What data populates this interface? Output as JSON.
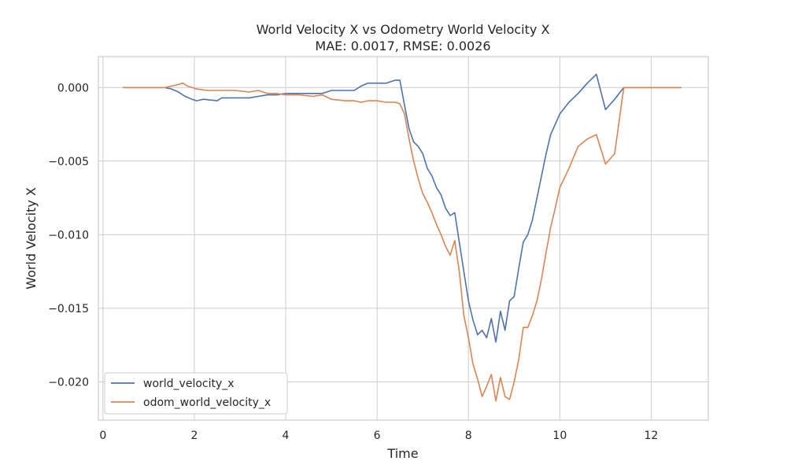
{
  "chart_data": {
    "type": "line",
    "title": "World Velocity X vs Odometry World Velocity X",
    "subtitle": "MAE: 0.0017, RMSE: 0.0026",
    "xlabel": "Time",
    "ylabel": "World Velocity X",
    "xlim": [
      -0.1,
      13.25
    ],
    "ylim": [
      -0.0226,
      0.0021
    ],
    "xticks": [
      0,
      2,
      4,
      6,
      8,
      10,
      12
    ],
    "xtick_labels": [
      "0",
      "2",
      "4",
      "6",
      "8",
      "10",
      "12"
    ],
    "yticks": [
      0.0,
      -0.005,
      -0.01,
      -0.015,
      -0.02
    ],
    "ytick_labels": [
      "0.000",
      "−0.005",
      "−0.010",
      "−0.015",
      "−0.020"
    ],
    "grid": true,
    "legend_position": "lower-left",
    "series": [
      {
        "name": "world_velocity_x",
        "color": "#4c72b0",
        "points": [
          [
            0.45,
            0.0
          ],
          [
            1.0,
            0.0
          ],
          [
            1.35,
            0.0
          ],
          [
            1.5,
            -0.0001
          ],
          [
            1.65,
            -0.0003
          ],
          [
            1.8,
            -0.0006
          ],
          [
            1.95,
            -0.0008
          ],
          [
            2.05,
            -0.0009
          ],
          [
            2.2,
            -0.0008
          ],
          [
            2.5,
            -0.0009
          ],
          [
            2.6,
            -0.0007
          ],
          [
            2.9,
            -0.0007
          ],
          [
            3.2,
            -0.0007
          ],
          [
            3.4,
            -0.0006
          ],
          [
            3.6,
            -0.0005
          ],
          [
            3.8,
            -0.0005
          ],
          [
            4.0,
            -0.0004
          ],
          [
            4.2,
            -0.0004
          ],
          [
            4.5,
            -0.0004
          ],
          [
            4.8,
            -0.0004
          ],
          [
            5.0,
            -0.0002
          ],
          [
            5.3,
            -0.0002
          ],
          [
            5.5,
            -0.0002
          ],
          [
            5.65,
            0.0001
          ],
          [
            5.8,
            0.0003
          ],
          [
            6.0,
            0.0003
          ],
          [
            6.2,
            0.0003
          ],
          [
            6.4,
            0.0005
          ],
          [
            6.5,
            0.0005
          ],
          [
            6.6,
            -0.0012
          ],
          [
            6.7,
            -0.0028
          ],
          [
            6.8,
            -0.0037
          ],
          [
            6.9,
            -0.004
          ],
          [
            7.0,
            -0.0045
          ],
          [
            7.1,
            -0.0055
          ],
          [
            7.2,
            -0.006
          ],
          [
            7.3,
            -0.0068
          ],
          [
            7.4,
            -0.0073
          ],
          [
            7.5,
            -0.0082
          ],
          [
            7.6,
            -0.0087
          ],
          [
            7.7,
            -0.0085
          ],
          [
            7.8,
            -0.0105
          ],
          [
            7.9,
            -0.0125
          ],
          [
            8.0,
            -0.0145
          ],
          [
            8.1,
            -0.0158
          ],
          [
            8.2,
            -0.0168
          ],
          [
            8.3,
            -0.0165
          ],
          [
            8.4,
            -0.017
          ],
          [
            8.5,
            -0.0157
          ],
          [
            8.6,
            -0.0173
          ],
          [
            8.7,
            -0.0152
          ],
          [
            8.8,
            -0.0165
          ],
          [
            8.9,
            -0.0145
          ],
          [
            9.0,
            -0.0142
          ],
          [
            9.1,
            -0.0123
          ],
          [
            9.2,
            -0.0105
          ],
          [
            9.3,
            -0.01
          ],
          [
            9.4,
            -0.009
          ],
          [
            9.5,
            -0.0075
          ],
          [
            9.6,
            -0.006
          ],
          [
            9.7,
            -0.0045
          ],
          [
            9.8,
            -0.0032
          ],
          [
            9.9,
            -0.0025
          ],
          [
            10.0,
            -0.0018
          ],
          [
            10.2,
            -0.001
          ],
          [
            10.4,
            -0.0004
          ],
          [
            10.6,
            0.0003
          ],
          [
            10.8,
            0.0009
          ],
          [
            11.0,
            -0.0015
          ],
          [
            11.2,
            -0.0008
          ],
          [
            11.4,
            0.0
          ],
          [
            12.0,
            0.0
          ],
          [
            12.65,
            0.0
          ]
        ]
      },
      {
        "name": "odom_world_velocity_x",
        "color": "#dd8452",
        "points": [
          [
            0.45,
            0.0
          ],
          [
            1.0,
            0.0
          ],
          [
            1.35,
            0.0
          ],
          [
            1.5,
            0.0001
          ],
          [
            1.65,
            0.0002
          ],
          [
            1.75,
            0.0003
          ],
          [
            1.85,
            0.0001
          ],
          [
            1.95,
            0.0
          ],
          [
            2.05,
            -0.0001
          ],
          [
            2.3,
            -0.0002
          ],
          [
            2.6,
            -0.0002
          ],
          [
            2.9,
            -0.0002
          ],
          [
            3.2,
            -0.0003
          ],
          [
            3.4,
            -0.0002
          ],
          [
            3.6,
            -0.0004
          ],
          [
            3.8,
            -0.0004
          ],
          [
            4.0,
            -0.0005
          ],
          [
            4.3,
            -0.0005
          ],
          [
            4.6,
            -0.0006
          ],
          [
            4.8,
            -0.0005
          ],
          [
            5.0,
            -0.0008
          ],
          [
            5.3,
            -0.0009
          ],
          [
            5.5,
            -0.0009
          ],
          [
            5.65,
            -0.001
          ],
          [
            5.8,
            -0.0009
          ],
          [
            6.0,
            -0.0009
          ],
          [
            6.2,
            -0.001
          ],
          [
            6.4,
            -0.001
          ],
          [
            6.5,
            -0.0011
          ],
          [
            6.6,
            -0.0018
          ],
          [
            6.7,
            -0.0035
          ],
          [
            6.8,
            -0.005
          ],
          [
            6.9,
            -0.0062
          ],
          [
            7.0,
            -0.0072
          ],
          [
            7.1,
            -0.0078
          ],
          [
            7.2,
            -0.0085
          ],
          [
            7.3,
            -0.0093
          ],
          [
            7.4,
            -0.01
          ],
          [
            7.5,
            -0.0108
          ],
          [
            7.6,
            -0.0114
          ],
          [
            7.7,
            -0.0104
          ],
          [
            7.8,
            -0.0125
          ],
          [
            7.9,
            -0.0155
          ],
          [
            8.0,
            -0.017
          ],
          [
            8.1,
            -0.0188
          ],
          [
            8.2,
            -0.0198
          ],
          [
            8.3,
            -0.021
          ],
          [
            8.4,
            -0.0203
          ],
          [
            8.5,
            -0.0195
          ],
          [
            8.6,
            -0.0213
          ],
          [
            8.7,
            -0.0197
          ],
          [
            8.8,
            -0.021
          ],
          [
            8.9,
            -0.0212
          ],
          [
            9.0,
            -0.02
          ],
          [
            9.1,
            -0.0185
          ],
          [
            9.2,
            -0.0163
          ],
          [
            9.3,
            -0.0163
          ],
          [
            9.4,
            -0.0155
          ],
          [
            9.5,
            -0.0145
          ],
          [
            9.6,
            -0.013
          ],
          [
            9.7,
            -0.0112
          ],
          [
            9.8,
            -0.0095
          ],
          [
            9.9,
            -0.0082
          ],
          [
            10.0,
            -0.0068
          ],
          [
            10.2,
            -0.0055
          ],
          [
            10.4,
            -0.004
          ],
          [
            10.6,
            -0.0035
          ],
          [
            10.8,
            -0.0032
          ],
          [
            11.0,
            -0.0052
          ],
          [
            11.2,
            -0.0045
          ],
          [
            11.4,
            0.0
          ],
          [
            12.0,
            0.0
          ],
          [
            12.65,
            0.0
          ]
        ]
      }
    ]
  }
}
